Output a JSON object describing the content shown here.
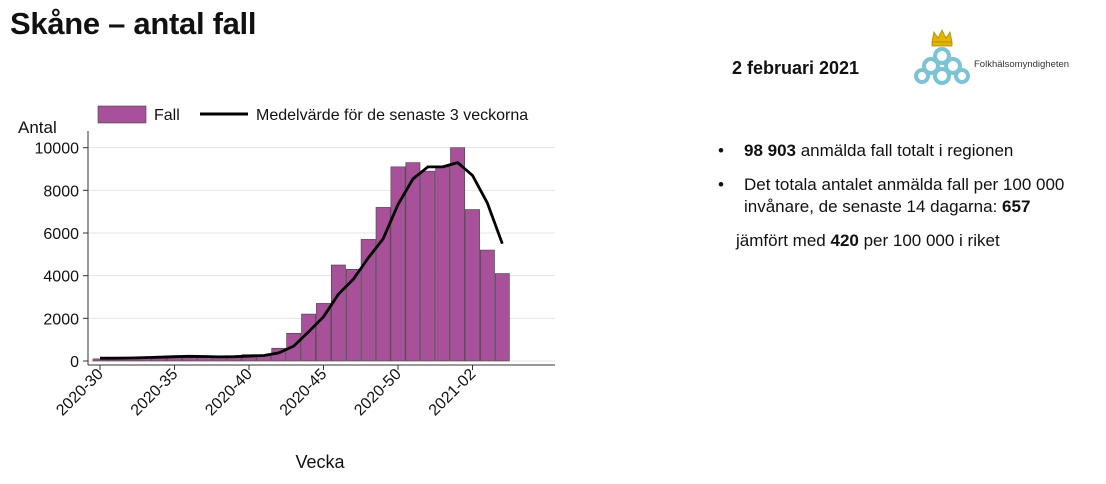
{
  "header": {
    "title": "Skåne – antal fall",
    "date": "2 februari 2021"
  },
  "logo": {
    "name": "Folkhälsomyndigheten"
  },
  "chart_data": {
    "type": "bar",
    "legend": {
      "bar_label": "Fall",
      "line_label": "Medelvärde för de senaste 3 veckorna",
      "placement": "top"
    },
    "ylabel": "Antal",
    "xlabel": "Vecka",
    "ylim": [
      0,
      10500
    ],
    "yticks": [
      0,
      2000,
      4000,
      6000,
      8000,
      10000
    ],
    "xtick_labels": [
      "2020-30",
      "2020-35",
      "2020-40",
      "2020-45",
      "2020-50",
      "2021-02"
    ],
    "xtick_indices": [
      0,
      5,
      10,
      15,
      20,
      25
    ],
    "categories": [
      "2020-30",
      "2020-31",
      "2020-32",
      "2020-33",
      "2020-34",
      "2020-35",
      "2020-36",
      "2020-37",
      "2020-38",
      "2020-39",
      "2020-40",
      "2020-41",
      "2020-42",
      "2020-43",
      "2020-44",
      "2020-45",
      "2020-46",
      "2020-47",
      "2020-48",
      "2020-49",
      "2020-50",
      "2020-51",
      "2020-52",
      "2020-53",
      "2021-01",
      "2021-02",
      "2021-03",
      "2021-04"
    ],
    "series": [
      {
        "name": "Fall",
        "type": "bar",
        "color": "#a8509a",
        "values": [
          100,
          130,
          150,
          160,
          220,
          240,
          200,
          180,
          200,
          220,
          300,
          250,
          600,
          1300,
          2200,
          2700,
          4500,
          4300,
          5700,
          7200,
          9100,
          9300,
          8900,
          9100,
          10000,
          7100,
          5200,
          4100
        ]
      },
      {
        "name": "Medelvärde för de senaste 3 veckorna",
        "type": "line",
        "color": "#000000",
        "values": [
          130,
          130,
          140,
          160,
          180,
          200,
          220,
          210,
          190,
          200,
          230,
          260,
          380,
          700,
          1370,
          2070,
          3130,
          3830,
          4830,
          5730,
          7330,
          8530,
          9100,
          9100,
          9300,
          8700,
          7400,
          5500
        ]
      }
    ],
    "grid": "horizontal"
  },
  "bullets": {
    "b1_bold": "98 903",
    "b1_text": " anmälda fall totalt i regionen",
    "b2_text": "Det totala antalet anmälda fall per 100 000 invånare, de senaste 14 dagarna: ",
    "b2_bold": "657",
    "cmp_pre": "jämfört med ",
    "cmp_bold": "420",
    "cmp_post": " per 100 000 i riket"
  }
}
